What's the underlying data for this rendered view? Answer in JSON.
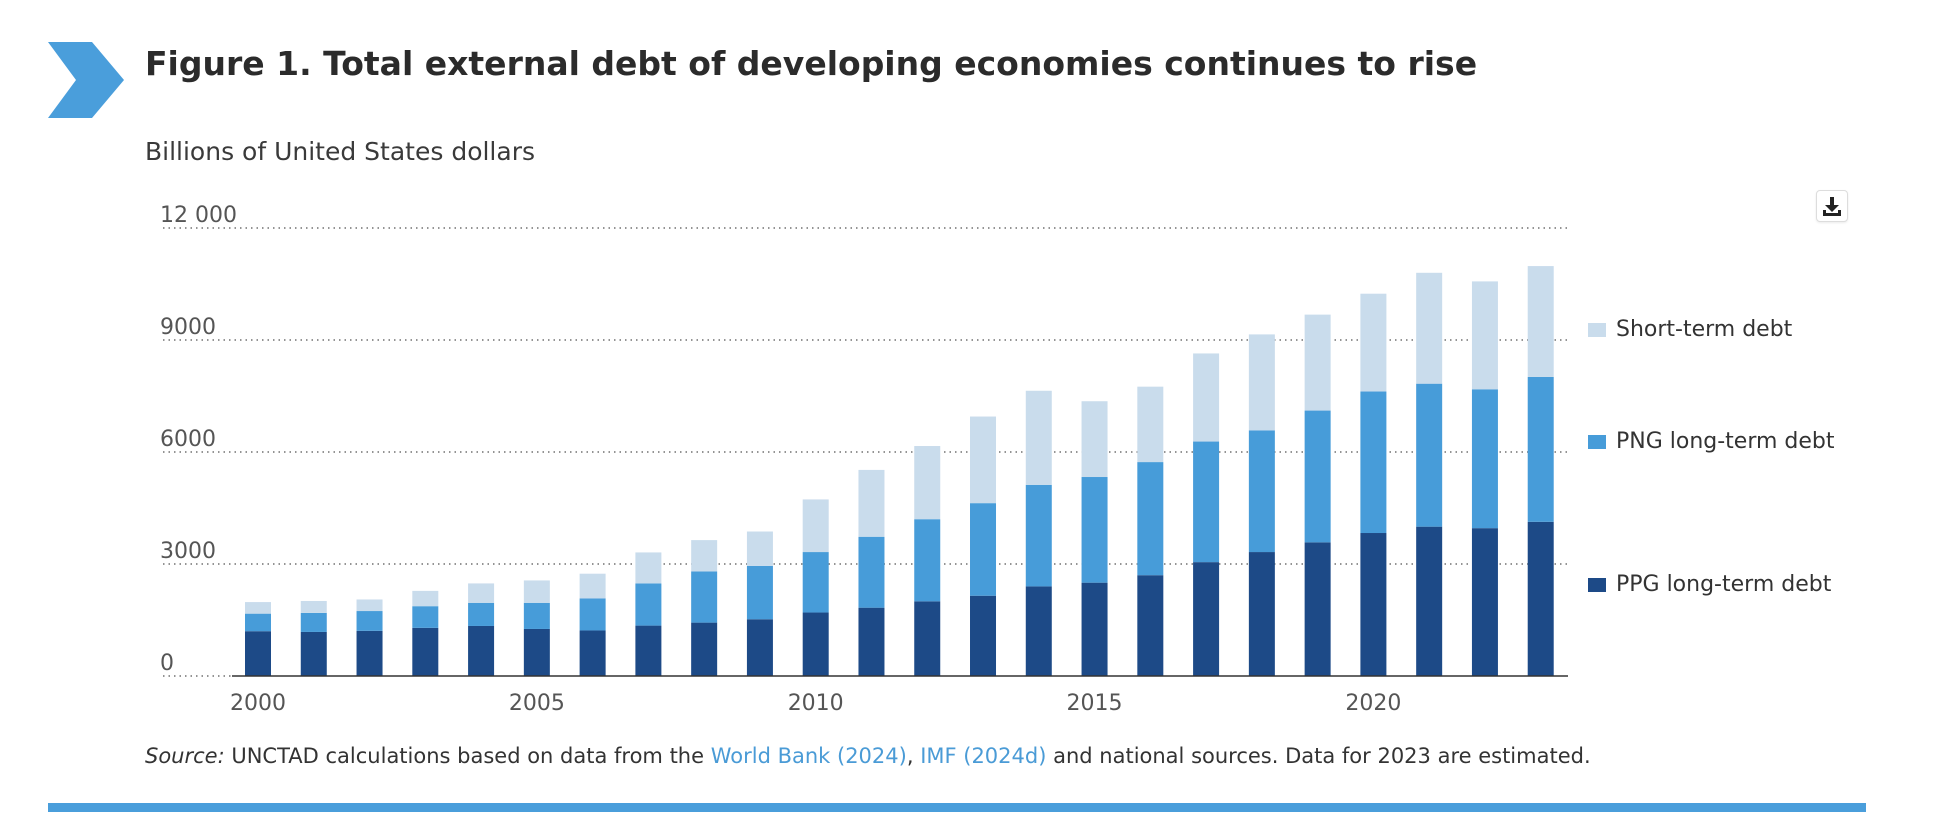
{
  "header": {
    "title": "Figure 1. Total external debt of developing economies continues to rise",
    "subtitle": "Billions of United States dollars"
  },
  "icons": {
    "brand": "chevron-right-icon",
    "download": "download-icon"
  },
  "colors": {
    "brand": "#4a9edb",
    "ppg": "#1d4a87",
    "png": "#479cd9",
    "short_term": "#c9dcec"
  },
  "source": {
    "label": "Source:",
    "text_before": " UNCTAD calculations based on data from the ",
    "link1": "World Bank (2024)",
    "separator": ", ",
    "link2": "IMF (2024d)",
    "text_after": " and national sources. Data for 2023 are estimated."
  },
  "chart_data": {
    "type": "bar",
    "stacked": true,
    "title": "Figure 1. Total external debt of developing economies continues to rise",
    "ylabel": "Billions of United States dollars",
    "xlabel": "",
    "ylim": [
      0,
      12000
    ],
    "yticks": [
      0,
      3000,
      6000,
      9000,
      12000
    ],
    "ytick_labels": [
      "0",
      "3000",
      "6000",
      "9000",
      "12 000"
    ],
    "xtick_labels": [
      "2000",
      "2005",
      "2010",
      "2015",
      "2020"
    ],
    "grid": "dotted horizontal",
    "legend_position": "right",
    "categories": [
      "2000",
      "2001",
      "2002",
      "2003",
      "2004",
      "2005",
      "2006",
      "2007",
      "2008",
      "2009",
      "2010",
      "2011",
      "2012",
      "2013",
      "2014",
      "2015",
      "2016",
      "2017",
      "2018",
      "2019",
      "2020",
      "2021",
      "2022",
      "2023"
    ],
    "series": [
      {
        "name": "PPG long-term debt",
        "color": "#1d4a87",
        "values": [
          1200,
          1180,
          1210,
          1290,
          1340,
          1260,
          1220,
          1350,
          1430,
          1520,
          1700,
          1830,
          2000,
          2150,
          2400,
          2500,
          2700,
          3050,
          3320,
          3580,
          3830,
          4000,
          3960,
          4130
        ]
      },
      {
        "name": "PNG long-term debt",
        "color": "#479cd9",
        "values": [
          470,
          510,
          530,
          580,
          620,
          700,
          860,
          1130,
          1370,
          1430,
          1620,
          1900,
          2200,
          2480,
          2720,
          2830,
          3030,
          3230,
          3260,
          3530,
          3790,
          3830,
          3720,
          3880
        ]
      },
      {
        "name": "Short-term debt",
        "color": "#c9dcec",
        "values": [
          310,
          320,
          310,
          410,
          520,
          600,
          660,
          830,
          840,
          920,
          1410,
          1790,
          1960,
          2320,
          2520,
          2030,
          2020,
          2360,
          2570,
          2570,
          2620,
          2970,
          2890,
          2970
        ]
      }
    ]
  }
}
